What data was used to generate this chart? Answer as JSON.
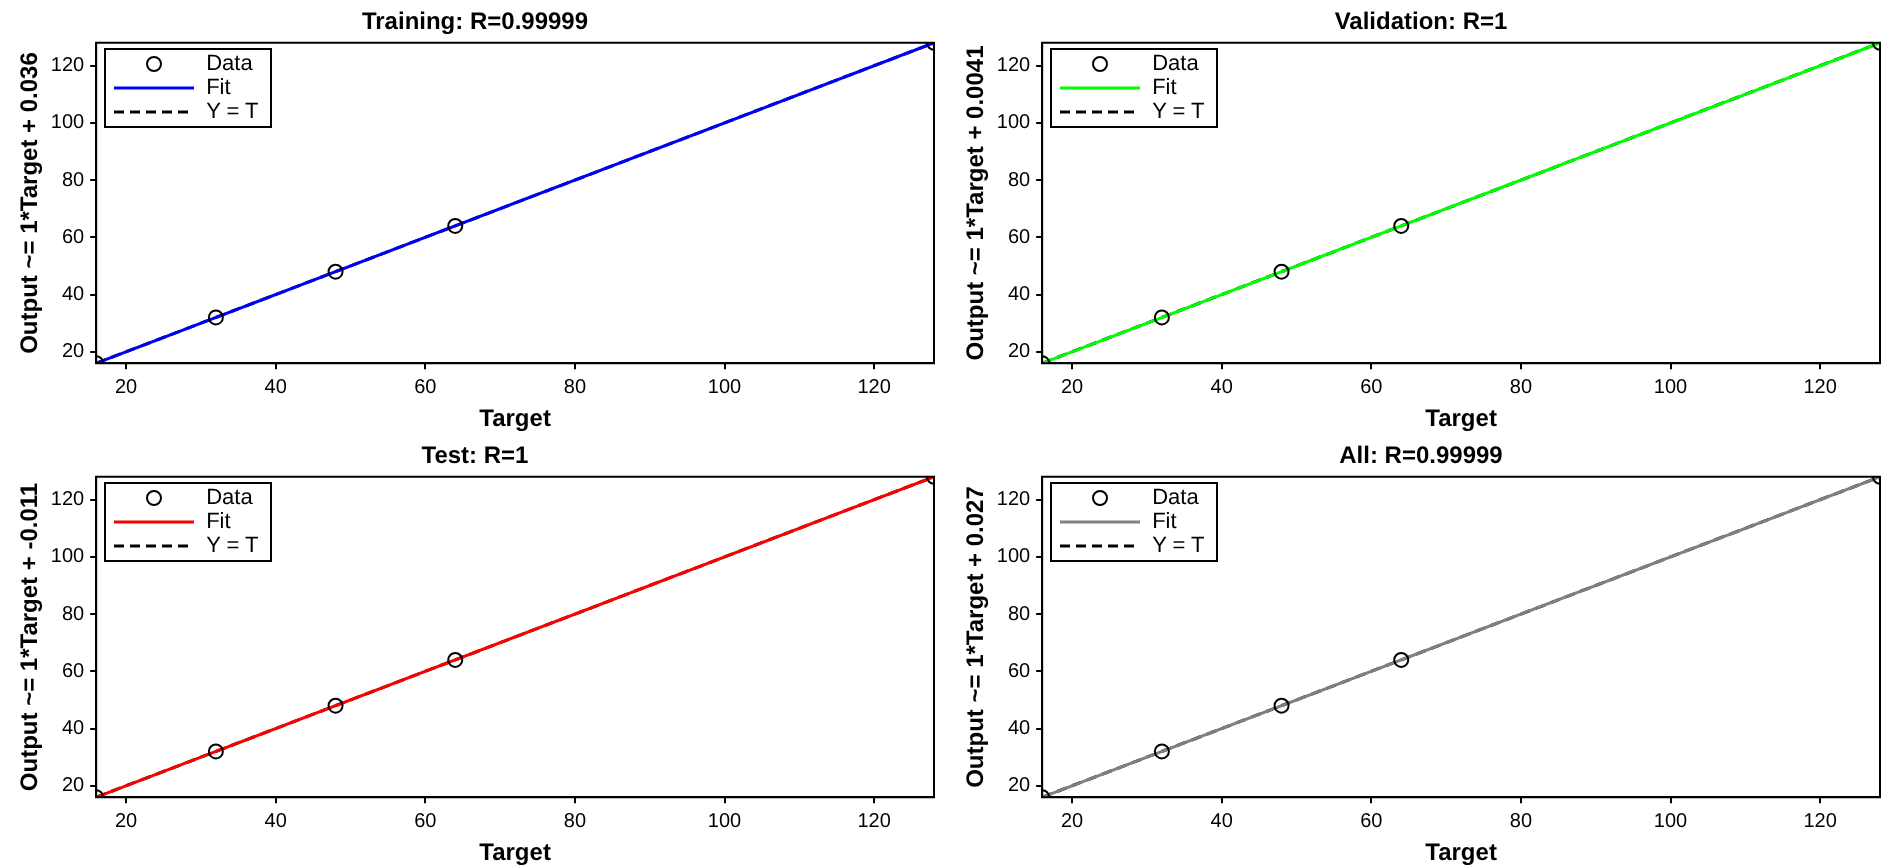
{
  "chart_data": [
    {
      "type": "scatter",
      "title": "Training: R=0.99999",
      "xlabel": "Target",
      "ylabel": "Output ~= 1*Target + 0.036",
      "xlim": [
        16,
        128
      ],
      "ylim": [
        16,
        128
      ],
      "xticks": [
        20,
        40,
        60,
        80,
        100,
        120
      ],
      "yticks": [
        20,
        40,
        60,
        80,
        100,
        120
      ],
      "grid": false,
      "legend": "top left",
      "series": [
        {
          "name": "Data",
          "type": "scatter",
          "marker": "circle",
          "color": "#000000",
          "x": [
            16,
            32,
            48,
            64,
            128
          ],
          "values": [
            16,
            32,
            48,
            64,
            128
          ]
        },
        {
          "name": "Fit",
          "type": "line",
          "marker": "none",
          "line_style": "solid",
          "color": "#0000ff",
          "x": [
            16,
            128
          ],
          "values": [
            16,
            128
          ]
        },
        {
          "name": "Y = T",
          "type": "line",
          "marker": "none",
          "line_style": "dashed",
          "color": "#000000",
          "x": [
            16,
            128
          ],
          "values": [
            16,
            128
          ]
        }
      ]
    },
    {
      "type": "scatter",
      "title": "Validation: R=1",
      "xlabel": "Target",
      "ylabel": "Output ~= 1*Target + 0.0041",
      "xlim": [
        16,
        128
      ],
      "ylim": [
        16,
        128
      ],
      "xticks": [
        20,
        40,
        60,
        80,
        100,
        120
      ],
      "yticks": [
        20,
        40,
        60,
        80,
        100,
        120
      ],
      "grid": false,
      "legend": "top left",
      "series": [
        {
          "name": "Data",
          "type": "scatter",
          "marker": "circle",
          "color": "#000000",
          "x": [
            16,
            32,
            48,
            64,
            128
          ],
          "values": [
            16,
            32,
            48,
            64,
            128
          ]
        },
        {
          "name": "Fit",
          "type": "line",
          "marker": "none",
          "line_style": "solid",
          "color": "#00ff00",
          "x": [
            16,
            128
          ],
          "values": [
            16,
            128
          ]
        },
        {
          "name": "Y = T",
          "type": "line",
          "marker": "none",
          "line_style": "dashed",
          "color": "#000000",
          "x": [
            16,
            128
          ],
          "values": [
            16,
            128
          ]
        }
      ]
    },
    {
      "type": "scatter",
      "title": "Test: R=1",
      "xlabel": "Target",
      "ylabel": "Output ~= 1*Target + -0.011",
      "xlim": [
        16,
        128
      ],
      "ylim": [
        16,
        128
      ],
      "xticks": [
        20,
        40,
        60,
        80,
        100,
        120
      ],
      "yticks": [
        20,
        40,
        60,
        80,
        100,
        120
      ],
      "grid": false,
      "legend": "top left",
      "series": [
        {
          "name": "Data",
          "type": "scatter",
          "marker": "circle",
          "color": "#000000",
          "x": [
            16,
            32,
            48,
            64,
            128
          ],
          "values": [
            16,
            32,
            48,
            64,
            128
          ]
        },
        {
          "name": "Fit",
          "type": "line",
          "marker": "none",
          "line_style": "solid",
          "color": "#ff0000",
          "x": [
            16,
            128
          ],
          "values": [
            16,
            128
          ]
        },
        {
          "name": "Y = T",
          "type": "line",
          "marker": "none",
          "line_style": "dashed",
          "color": "#000000",
          "x": [
            16,
            128
          ],
          "values": [
            16,
            128
          ]
        }
      ]
    },
    {
      "type": "scatter",
      "title": "All: R=0.99999",
      "xlabel": "Target",
      "ylabel": "Output ~= 1*Target + 0.027",
      "xlim": [
        16,
        128
      ],
      "ylim": [
        16,
        128
      ],
      "xticks": [
        20,
        40,
        60,
        80,
        100,
        120
      ],
      "yticks": [
        20,
        40,
        60,
        80,
        100,
        120
      ],
      "grid": false,
      "legend": "top left",
      "series": [
        {
          "name": "Data",
          "type": "scatter",
          "marker": "circle",
          "color": "#000000",
          "x": [
            16,
            32,
            48,
            64,
            128
          ],
          "values": [
            16,
            32,
            48,
            64,
            128
          ]
        },
        {
          "name": "Fit",
          "type": "line",
          "marker": "none",
          "line_style": "solid",
          "color": "#808080",
          "x": [
            16,
            128
          ],
          "values": [
            16,
            128
          ]
        },
        {
          "name": "Y = T",
          "type": "line",
          "marker": "none",
          "line_style": "dashed",
          "color": "#000000",
          "x": [
            16,
            128
          ],
          "values": [
            16,
            128
          ]
        }
      ]
    }
  ]
}
